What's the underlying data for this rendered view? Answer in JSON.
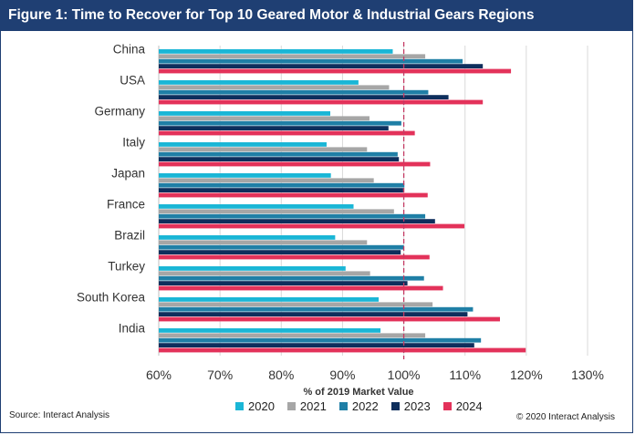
{
  "title": "Figure 1: Time to Recover for Top 10 Geared Motor & Industrial Gears Regions",
  "source": "Source: Interact Analysis",
  "copyright": "© 2020 Interact Analysis",
  "colors": {
    "title_bar": "#1f3f73",
    "s2020": "#1ab6d6",
    "s2021": "#a6a6a6",
    "s2022": "#1f7fa6",
    "s2023": "#0e2e5c",
    "s2024": "#e3325a",
    "reference_line": "#c43a63"
  },
  "chart_data": {
    "type": "bar",
    "orientation": "horizontal",
    "categories": [
      "China",
      "USA",
      "Germany",
      "Italy",
      "Japan",
      "France",
      "Brazil",
      "Turkey",
      "South Korea",
      "India"
    ],
    "series": [
      {
        "name": "2020",
        "values": [
          98.2,
          92.6,
          88.0,
          87.4,
          88.1,
          91.8,
          88.8,
          90.5,
          95.9,
          96.2
        ]
      },
      {
        "name": "2021",
        "values": [
          103.5,
          97.6,
          94.4,
          94.0,
          95.1,
          98.4,
          94.0,
          94.5,
          104.7,
          103.5
        ]
      },
      {
        "name": "2022",
        "values": [
          109.6,
          104.0,
          99.6,
          99.0,
          100.1,
          103.5,
          100.0,
          103.3,
          111.3,
          112.6
        ]
      },
      {
        "name": "2023",
        "values": [
          112.9,
          107.3,
          97.5,
          99.2,
          99.9,
          105.1,
          99.5,
          100.6,
          110.4,
          111.5
        ]
      },
      {
        "name": "2024",
        "values": [
          117.5,
          112.9,
          101.8,
          104.3,
          103.9,
          109.9,
          104.2,
          106.4,
          115.7,
          119.9
        ]
      }
    ],
    "xlabel": "% of 2019 Market Value",
    "ylabel": "",
    "xlim": [
      60,
      130
    ],
    "xticks": [
      "60%",
      "70%",
      "80%",
      "90%",
      "100%",
      "110%",
      "120%",
      "130%"
    ],
    "reference_line": 100,
    "grid": "vertical",
    "legend_position": "bottom"
  }
}
